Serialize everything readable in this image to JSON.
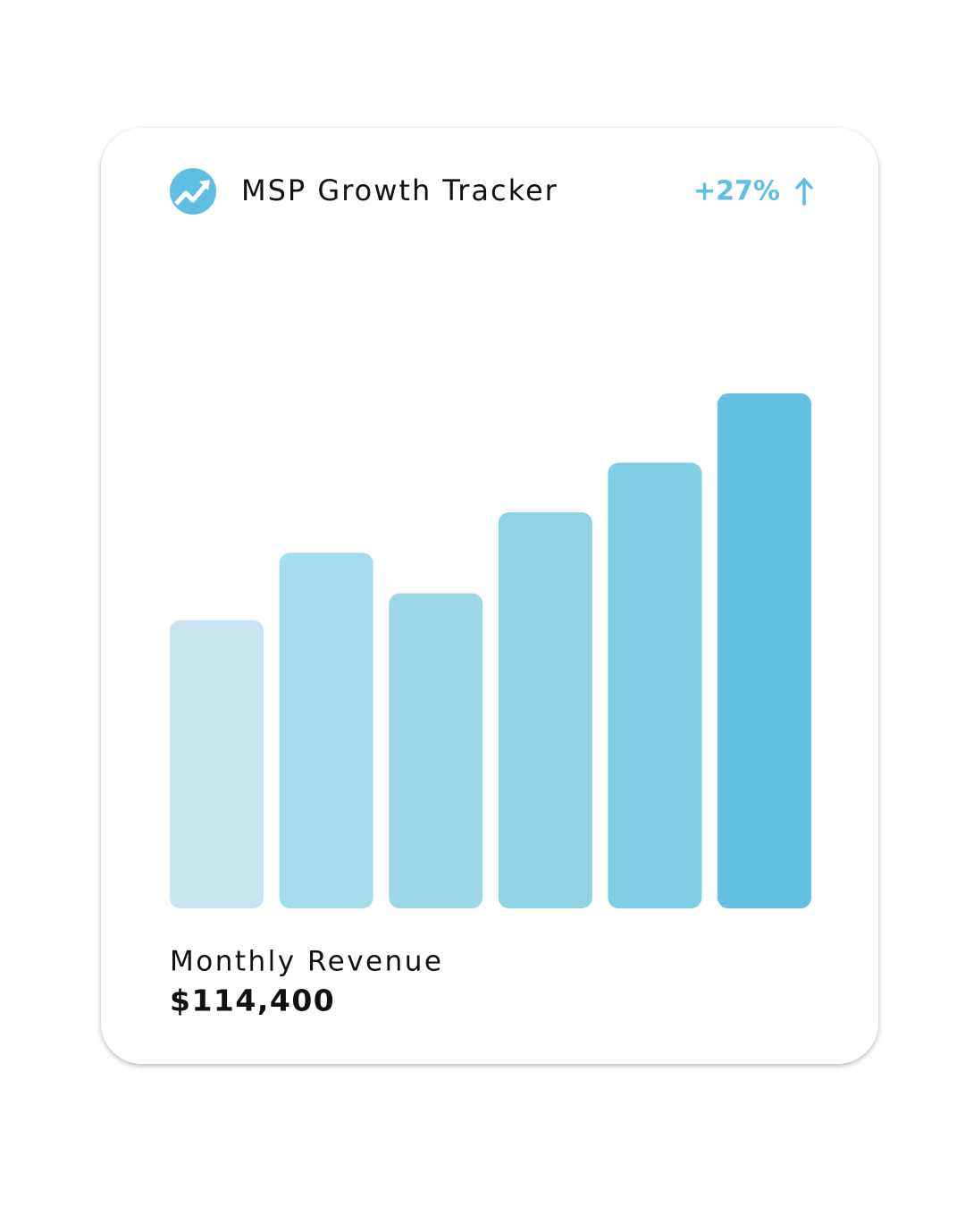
{
  "chart_data": {
    "type": "bar",
    "title": "MSP Growth Tracker",
    "change": "+27%",
    "metric_label": "Monthly Revenue",
    "metric_value": "$114,400",
    "categories": [
      null,
      null,
      null,
      null,
      null,
      null
    ],
    "values": [
      64000,
      79000,
      70000,
      88000,
      99000,
      114400
    ],
    "colors": [
      "#c8e5ef",
      "#a6ddee",
      "#9dd7ea",
      "#92d2e5",
      "#80cde6",
      "#65c1e2"
    ],
    "ylim": [
      0,
      114400
    ]
  }
}
